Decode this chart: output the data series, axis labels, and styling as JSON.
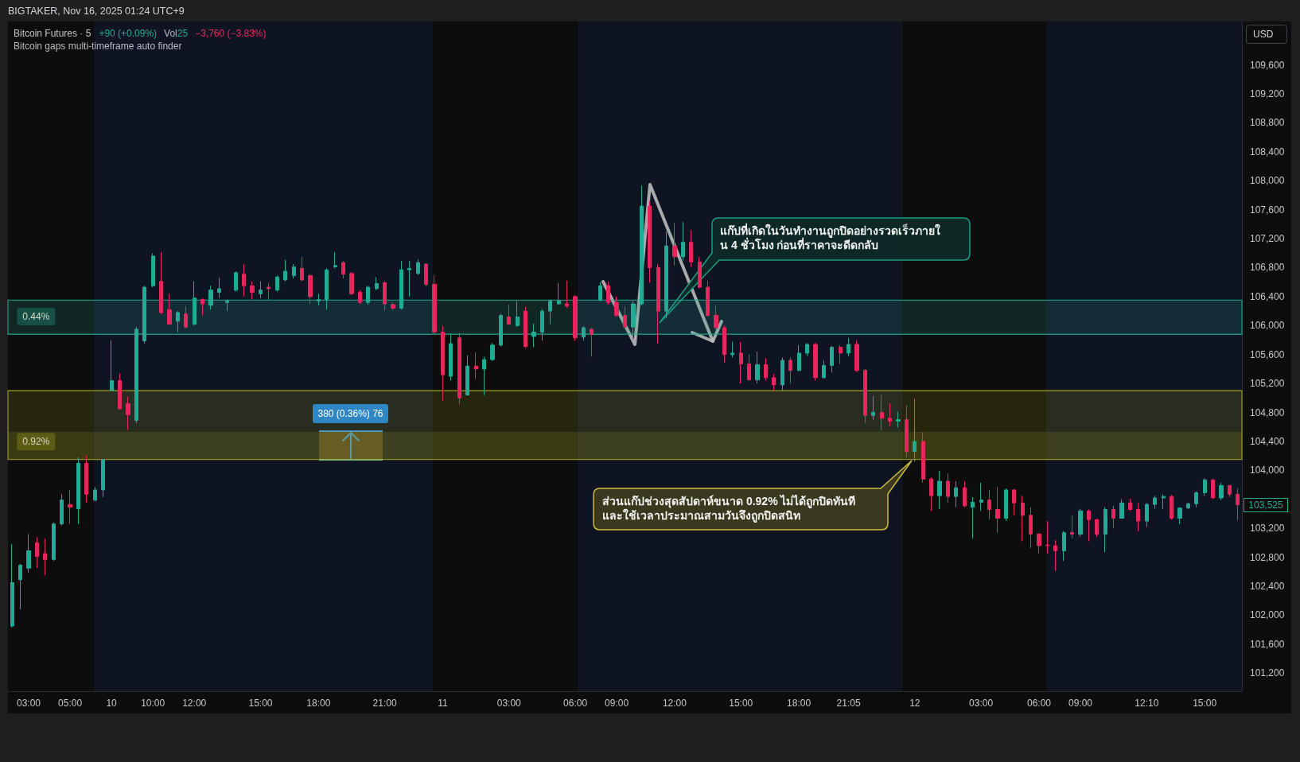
{
  "chart_data": {
    "type": "candlestick",
    "title": "Bitcoin Futures · 5",
    "subtitle": "Bitcoin gaps multi-timeframe auto finder",
    "ylabel": "USD",
    "categories": [
      null,
      null,
      "03:00",
      null,
      null,
      null,
      null,
      "05:00",
      null,
      null,
      null,
      null,
      "10",
      null,
      null,
      null,
      null,
      "10:00",
      null,
      null,
      null,
      null,
      "12:00",
      null,
      null,
      null,
      null,
      null,
      null,
      null,
      "15:00",
      null,
      null,
      null,
      null,
      null,
      null,
      "18:00",
      null,
      null,
      null,
      null,
      null,
      null,
      null,
      "21:00",
      null,
      null,
      null,
      null,
      null,
      null,
      "11",
      null,
      null,
      null,
      null,
      null,
      null,
      null,
      "03:00",
      null,
      null,
      null,
      null,
      null,
      null,
      null,
      "06:00",
      null,
      null,
      null,
      null,
      "09:00",
      null,
      null,
      null,
      null,
      null,
      null,
      "12:00",
      null,
      null,
      null,
      null,
      null,
      null,
      null,
      "15:00",
      null,
      null,
      null,
      null,
      null,
      null,
      "18:00",
      null,
      null,
      null,
      null,
      null,
      "21:05",
      null,
      null,
      null,
      null,
      null,
      null,
      null,
      "12",
      null,
      null,
      null,
      null,
      null,
      null,
      null,
      "03:00",
      null,
      null,
      null,
      null,
      null,
      null,
      "06:00",
      null,
      null,
      null,
      null,
      "09:00",
      null,
      null,
      null,
      null,
      null,
      null,
      null,
      "12:10",
      null,
      null,
      null,
      null,
      null,
      null,
      "15:00",
      null,
      null,
      null,
      null
    ],
    "ohlc": [
      [
        101850,
        102980,
        101830,
        102450
      ],
      [
        102490,
        102710,
        102080,
        102690
      ],
      [
        102650,
        103120,
        102590,
        102890
      ],
      [
        103000,
        103080,
        102650,
        102810
      ],
      [
        102850,
        103060,
        102550,
        102770
      ],
      [
        102770,
        103280,
        102750,
        103260
      ],
      [
        103260,
        103670,
        103240,
        103590
      ],
      [
        103530,
        103730,
        103260,
        103490
      ],
      [
        103470,
        104180,
        103260,
        104100
      ],
      [
        104100,
        104200,
        103550,
        103670
      ],
      [
        103590,
        103770,
        103570,
        103730
      ],
      [
        103730,
        104150,
        103630,
        104150
      ],
      [
        105100,
        105800,
        105100,
        105240
      ],
      [
        105240,
        105340,
        104850,
        104850
      ],
      [
        104920,
        105020,
        104560,
        104770
      ],
      [
        104690,
        105980,
        104650,
        105950
      ],
      [
        105790,
        106550,
        105750,
        106530
      ],
      [
        106550,
        107000,
        106530,
        106960
      ],
      [
        106610,
        107020,
        106160,
        106180
      ],
      [
        106220,
        106440,
        106020,
        106020
      ],
      [
        106060,
        106200,
        105910,
        106180
      ],
      [
        106160,
        106260,
        105960,
        105980
      ],
      [
        106020,
        106610,
        106000,
        106380
      ],
      [
        106360,
        106380,
        106140,
        106300
      ],
      [
        106280,
        106550,
        106220,
        106490
      ],
      [
        106460,
        106660,
        106380,
        106510
      ],
      [
        106320,
        106360,
        106200,
        106340
      ],
      [
        106490,
        106750,
        106470,
        106730
      ],
      [
        106710,
        106850,
        106400,
        106550
      ],
      [
        106550,
        106610,
        106360,
        106460
      ],
      [
        106440,
        106610,
        106380,
        106490
      ],
      [
        106530,
        106590,
        106340,
        106510
      ],
      [
        106490,
        106690,
        106470,
        106670
      ],
      [
        106630,
        106910,
        106610,
        106750
      ],
      [
        106690,
        106850,
        106650,
        106810
      ],
      [
        106790,
        106950,
        106610,
        106630
      ],
      [
        106690,
        106710,
        106300,
        106400
      ],
      [
        106340,
        106440,
        106280,
        106360
      ],
      [
        106360,
        106790,
        106220,
        106770
      ],
      [
        106810,
        107010,
        106790,
        106830
      ],
      [
        106870,
        106890,
        106650,
        106710
      ],
      [
        106720,
        106740,
        106420,
        106440
      ],
      [
        106460,
        106490,
        106300,
        106320
      ],
      [
        106320,
        106550,
        106290,
        106530
      ],
      [
        106510,
        106670,
        106490,
        106580
      ],
      [
        106590,
        106610,
        106210,
        106300
      ],
      [
        106290,
        106320,
        106210,
        106240
      ],
      [
        106240,
        106890,
        106220,
        106770
      ],
      [
        106770,
        106890,
        106400,
        106790
      ],
      [
        106720,
        106910,
        106700,
        106870
      ],
      [
        106850,
        106860,
        106540,
        106570
      ],
      [
        106570,
        106700,
        105870,
        105910
      ],
      [
        105910,
        106000,
        104960,
        105320
      ],
      [
        105300,
        105890,
        105240,
        105750
      ],
      [
        105830,
        105900,
        104910,
        105000
      ],
      [
        105040,
        105590,
        105040,
        105440
      ],
      [
        105440,
        105630,
        105260,
        105400
      ],
      [
        105400,
        105570,
        105040,
        105530
      ],
      [
        105530,
        105760,
        105510,
        105730
      ],
      [
        105730,
        106160,
        105710,
        106140
      ],
      [
        106120,
        106290,
        106010,
        106020
      ],
      [
        106000,
        106340,
        105980,
        106120
      ],
      [
        106200,
        106260,
        105690,
        105710
      ],
      [
        105850,
        106030,
        105700,
        105910
      ],
      [
        105910,
        106230,
        105790,
        106200
      ],
      [
        106200,
        106360,
        106020,
        106340
      ],
      [
        106300,
        106590,
        106290,
        106340
      ],
      [
        106300,
        106620,
        106240,
        106270
      ],
      [
        106400,
        106420,
        105790,
        105830
      ],
      [
        105840,
        105990,
        105790,
        105970
      ],
      [
        105950,
        105970,
        105570,
        105880
      ],
      [
        106350,
        106600,
        106330,
        106550
      ],
      [
        106550,
        106600,
        106290,
        106320
      ],
      [
        106320,
        106400,
        106120,
        106140
      ],
      [
        106140,
        106260,
        105950,
        105980
      ],
      [
        105980,
        106340,
        105800,
        106300
      ],
      [
        106300,
        107930,
        106280,
        107650
      ],
      [
        107650,
        107720,
        106590,
        106800
      ],
      [
        106800,
        106850,
        105750,
        106200
      ],
      [
        106200,
        107300,
        106100,
        107100
      ],
      [
        107100,
        107420,
        106830,
        106950
      ],
      [
        106950,
        107430,
        106900,
        107150
      ],
      [
        107150,
        107320,
        106810,
        106880
      ],
      [
        106880,
        106950,
        106510,
        106530
      ],
      [
        106530,
        106620,
        106120,
        106140
      ],
      [
        106140,
        106280,
        105940,
        105970
      ],
      [
        105970,
        106000,
        105490,
        105600
      ],
      [
        105600,
        105780,
        105560,
        105620
      ],
      [
        105620,
        105770,
        105200,
        105470
      ],
      [
        105470,
        105600,
        105240,
        105250
      ],
      [
        105250,
        105640,
        105200,
        105460
      ],
      [
        105460,
        105550,
        105240,
        105280
      ],
      [
        105280,
        105330,
        105100,
        105180
      ],
      [
        105180,
        105560,
        105090,
        105520
      ],
      [
        105520,
        105560,
        105200,
        105380
      ],
      [
        105380,
        105730,
        105370,
        105620
      ],
      [
        105620,
        105760,
        105580,
        105740
      ],
      [
        105740,
        105760,
        105240,
        105280
      ],
      [
        105280,
        105520,
        105270,
        105450
      ],
      [
        105450,
        105720,
        105350,
        105700
      ],
      [
        105700,
        105730,
        105470,
        105620
      ],
      [
        105620,
        105830,
        105580,
        105740
      ],
      [
        105740,
        105800,
        105360,
        105380
      ],
      [
        105380,
        105400,
        104650,
        104760
      ],
      [
        104760,
        105030,
        104700,
        104800
      ],
      [
        104800,
        105040,
        104550,
        104720
      ],
      [
        104720,
        104930,
        104610,
        104680
      ],
      [
        104680,
        104810,
        104590,
        104700
      ],
      [
        104700,
        104900,
        104180,
        104260
      ],
      [
        104260,
        104990,
        104120,
        104400
      ],
      [
        104400,
        104530,
        103830,
        103880
      ],
      [
        103880,
        103900,
        103440,
        103650
      ],
      [
        103650,
        103990,
        103470,
        103850
      ],
      [
        103850,
        103960,
        103550,
        103640
      ],
      [
        103640,
        103850,
        103490,
        103760
      ],
      [
        103760,
        103850,
        103490,
        103510
      ],
      [
        103490,
        103630,
        103060,
        103560
      ],
      [
        103560,
        103830,
        103440,
        103590
      ],
      [
        103590,
        103730,
        103320,
        103460
      ],
      [
        103460,
        103770,
        103140,
        103340
      ],
      [
        103340,
        103750,
        103300,
        103730
      ],
      [
        103730,
        103740,
        103380,
        103550
      ],
      [
        103550,
        103650,
        103020,
        103380
      ],
      [
        103380,
        103490,
        102930,
        103120
      ],
      [
        103120,
        103140,
        102850,
        102960
      ],
      [
        102970,
        103300,
        102850,
        102960
      ],
      [
        102960,
        103040,
        102610,
        102890
      ],
      [
        102890,
        103160,
        102750,
        103140
      ],
      [
        103140,
        103380,
        103060,
        103120
      ],
      [
        103120,
        103470,
        103080,
        103440
      ],
      [
        103440,
        103460,
        103020,
        103320
      ],
      [
        103320,
        103330,
        103080,
        103120
      ],
      [
        103120,
        103490,
        102870,
        103460
      ],
      [
        103460,
        103510,
        103200,
        103340
      ],
      [
        103340,
        103600,
        103330,
        103550
      ],
      [
        103550,
        103610,
        103440,
        103460
      ],
      [
        103460,
        103550,
        103160,
        103300
      ],
      [
        103300,
        103550,
        103220,
        103530
      ],
      [
        103530,
        103650,
        103470,
        103620
      ],
      [
        103620,
        103670,
        103470,
        103640
      ],
      [
        103640,
        103660,
        103320,
        103340
      ],
      [
        103340,
        103490,
        103260,
        103480
      ],
      [
        103480,
        103550,
        103470,
        103540
      ],
      [
        103540,
        103710,
        103490,
        103690
      ],
      [
        103690,
        103890,
        103650,
        103870
      ],
      [
        103870,
        103880,
        103610,
        103620
      ],
      [
        103620,
        103830,
        103590,
        103790
      ],
      [
        103790,
        103800,
        103630,
        103670
      ],
      [
        103670,
        103750,
        103310,
        103525
      ]
    ],
    "colors": [
      "#22ab94",
      "#22ab94",
      "#22ab94",
      "#e8265e",
      "#e8265e",
      "#22ab94",
      "#22ab94",
      "#e8265e",
      "#22ab94",
      "#e8265e",
      "#22ab94",
      "#22ab94",
      "#22ab94",
      "#e8265e",
      "#e8265e",
      "#22ab94",
      "#22ab94",
      "#22ab94",
      "#e8265e",
      "#e8265e",
      "#22ab94",
      "#e8265e",
      "#22ab94",
      "#e8265e",
      "#22ab94",
      "#22ab94",
      "#22ab94",
      "#22ab94",
      "#e8265e",
      "#e8265e",
      "#22ab94",
      "#e8265e",
      "#22ab94",
      "#22ab94",
      "#22ab94",
      "#e8265e",
      "#e8265e",
      "#22ab94",
      "#22ab94",
      "#22ab94",
      "#e8265e",
      "#e8265e",
      "#e8265e",
      "#22ab94",
      "#22ab94",
      "#e8265e",
      "#e8265e",
      "#22ab94",
      "#22ab94",
      "#22ab94",
      "#e8265e",
      "#e8265e",
      "#e8265e",
      "#22ab94",
      "#e8265e",
      "#22ab94",
      "#e8265e",
      "#22ab94",
      "#22ab94",
      "#22ab94",
      "#e8265e",
      "#22ab94",
      "#e8265e",
      "#22ab94",
      "#22ab94",
      "#22ab94",
      "#22ab94",
      "#e8265e",
      "#e8265e",
      "#22ab94",
      "#e8265e",
      "#22ab94",
      "#e8265e",
      "#e8265e",
      "#e8265e",
      "#22ab94",
      "#22ab94",
      "#e8265e",
      "#e8265e",
      "#22ab94",
      "#e8265e",
      "#22ab94",
      "#e8265e",
      "#e8265e",
      "#e8265e",
      "#e8265e",
      "#e8265e",
      "#22ab94",
      "#e8265e",
      "#e8265e",
      "#22ab94",
      "#e8265e",
      "#e8265e",
      "#22ab94",
      "#e8265e",
      "#22ab94",
      "#22ab94",
      "#e8265e",
      "#22ab94",
      "#22ab94",
      "#e8265e",
      "#22ab94",
      "#e8265e",
      "#e8265e",
      "#22ab94",
      "#e8265e",
      "#e8265e",
      "#22ab94",
      "#e8265e",
      "#22ab94",
      "#e8265e",
      "#e8265e",
      "#22ab94",
      "#e8265e",
      "#22ab94",
      "#e8265e",
      "#22ab94",
      "#22ab94",
      "#e8265e",
      "#e8265e",
      "#22ab94",
      "#e8265e",
      "#e8265e",
      "#e8265e",
      "#e8265e",
      "#e8265e",
      "#e8265e",
      "#22ab94",
      "#e8265e",
      "#22ab94",
      "#e8265e",
      "#e8265e",
      "#22ab94",
      "#e8265e",
      "#22ab94",
      "#e8265e",
      "#e8265e",
      "#22ab94",
      "#22ab94",
      "#22ab94",
      "#e8265e",
      "#22ab94",
      "#22ab94",
      "#22ab94",
      "#22ab94",
      "#e8265e",
      "#22ab94",
      "#e8265e",
      "#e8265e"
    ],
    "ylim": [
      100950,
      110200
    ],
    "yticks": [
      {
        "value": 101200,
        "label": "101,200"
      },
      {
        "value": 101600,
        "label": "101,600"
      },
      {
        "value": 102000,
        "label": "102,000"
      },
      {
        "value": 102400,
        "label": "102,400"
      },
      {
        "value": 102800,
        "label": "102,800"
      },
      {
        "value": 103200,
        "label": "103,200"
      },
      {
        "value": 104000,
        "label": "104,000"
      },
      {
        "value": 104400,
        "label": "104,400"
      },
      {
        "value": 104800,
        "label": "104,800"
      },
      {
        "value": 105200,
        "label": "105,200"
      },
      {
        "value": 105600,
        "label": "105,600"
      },
      {
        "value": 106000,
        "label": "106,000"
      },
      {
        "value": 106400,
        "label": "106,400"
      },
      {
        "value": 106800,
        "label": "106,800"
      },
      {
        "value": 107200,
        "label": "107,200"
      },
      {
        "value": 107600,
        "label": "107,600"
      },
      {
        "value": 108000,
        "label": "108,000"
      },
      {
        "value": 108400,
        "label": "108,400"
      },
      {
        "value": 108800,
        "label": "108,800"
      },
      {
        "value": 109200,
        "label": "109,200"
      },
      {
        "value": 109600,
        "label": "109,600"
      }
    ],
    "bands": [
      {
        "axis": "y",
        "from": 104150,
        "to": 105100,
        "label": "0.92%",
        "color": "#a8a820"
      },
      {
        "axis": "y",
        "from": 104150,
        "to": 104530,
        "color": "#a8a820"
      },
      {
        "axis": "y",
        "from": 105880,
        "to": 106350,
        "label": "0.44%",
        "color": "#22ab94"
      }
    ],
    "annotations": [
      "BIGTAKER, Nov 16, 2025 01:24 UTC+9",
      "+90 (+0.09%)",
      "Vol",
      "25",
      "−3,760 (−3.83%)",
      "380 (0.36%) 76",
      "แก๊ปที่เกิดในวันทำงานถูกปิดอย่างรวดเร็วภายใน 4 ชั่วโมง ก่อนที่ราคาจะดีดกลับ",
      "ส่วนแก๊ปช่วงสุดสัปดาห์ขนาด 0.92% ไม่ได้ถูกปิดทันที และใช้เวลาประมาณสามวันจึงถูกปิดสนิท",
      "103,525"
    ]
  }
}
